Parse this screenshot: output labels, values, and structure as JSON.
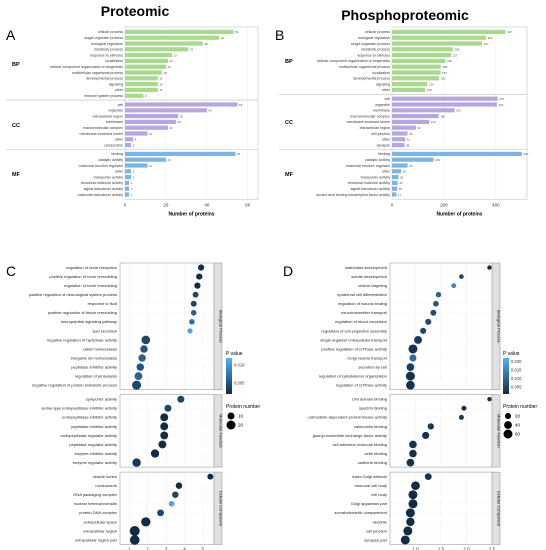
{
  "colors": {
    "bp": "#a9d98c",
    "cc": "#b8a6e0",
    "mf": "#7fb3e0",
    "strip": "#e0e0e0",
    "dot": "#0f1f3a",
    "grad_low": "#56b1f7",
    "grad_high": "#132b43"
  },
  "panel_letters": [
    "A",
    "B",
    "C",
    "D"
  ],
  "headings": [
    "Proteomic",
    "Phosphoproteomic"
  ],
  "chart_data": [
    {
      "type": "bar",
      "panel": "A",
      "title": "Proteomic",
      "xlabel": "Number of proteins",
      "xlim": [
        0,
        65
      ],
      "xticks": [
        "0",
        "20",
        "40",
        "60"
      ],
      "grid": true,
      "groups": [
        {
          "name": "BP",
          "labels": [
            "cellular process",
            "single-organism process",
            "biological regulation",
            "metabolic process",
            "response to stimulus",
            "localization",
            "cellular component organization or biogenesis",
            "multicellular organismal process",
            "developmental process",
            "signaling",
            "other",
            "immune system process"
          ],
          "values": [
            53,
            46,
            38,
            31,
            23,
            21,
            20,
            18,
            16,
            16,
            16,
            9
          ]
        },
        {
          "name": "CC",
          "labels": [
            "cell",
            "organelle",
            "extracellular region",
            "membrane",
            "macromolecular complex",
            "membrane-enclosed lumen",
            "other",
            "cell junction"
          ],
          "values": [
            55,
            40,
            26,
            25,
            21,
            11,
            4,
            3
          ]
        },
        {
          "name": "MF",
          "labels": [
            "binding",
            "catalytic activity",
            "molecular function regulator",
            "other",
            "transporter activity",
            "structural molecule activity",
            "signal transducer activity",
            "molecular transducer activity"
          ],
          "values": [
            54,
            20,
            11,
            3,
            3,
            2,
            2,
            2
          ]
        }
      ]
    },
    {
      "type": "bar",
      "panel": "B",
      "title": "Phosphoproteomic",
      "xlabel": "Number of proteins",
      "xlim": [
        0,
        520
      ],
      "xticks": [
        "0",
        "200",
        "400"
      ],
      "grid": true,
      "groups": [
        {
          "name": "BP",
          "labels": [
            "cellular process",
            "biological regulation",
            "single-organism process",
            "metabolic process",
            "response to stimulus",
            "cellular component organization or biogenesis",
            "multicellular organismal process",
            "localization",
            "developmental process",
            "signaling",
            "other"
          ],
          "values": [
            437,
            362,
            347,
            234,
            227,
            206,
            188,
            187,
            182,
            136,
            128
          ]
        },
        {
          "name": "CC",
          "labels": [
            "cell",
            "organelle",
            "membrane",
            "macromolecular complex",
            "membrane-enclosed lumen",
            "extracellular region",
            "cell junction",
            "other",
            "synapse"
          ],
          "values": [
            407,
            404,
            241,
            180,
            144,
            92,
            60,
            51,
            48
          ]
        },
        {
          "name": "MF",
          "labels": [
            "binding",
            "catalytic activity",
            "molecular function regulator",
            "other",
            "transporter activity",
            "structural molecule activity",
            "signal transducer activity",
            "nucleic acid binding transcription factor activity"
          ],
          "values": [
            500,
            160,
            60,
            35,
            25,
            22,
            20,
            17
          ]
        }
      ]
    },
    {
      "type": "scatter",
      "panel": "C",
      "xlabel": "Log2 Fold enrichment",
      "xlim": [
        0.5,
        5.6
      ],
      "xticks": [
        "1",
        "2",
        "3",
        "4",
        "5"
      ],
      "legend": {
        "pvalue_title": "P value",
        "pvalue_ticks": [
          "0.010",
          "0.005"
        ],
        "pvalue_range": [
          0.002,
          0.012
        ],
        "size_title": "Protein number",
        "size_ticks": [
          "10",
          "20"
        ],
        "size_values": [
          10,
          20
        ]
      },
      "groups": [
        {
          "name": "Biological Process",
          "terms": [
            "regulation of bone resorption",
            "positive regulation of bone remodeling",
            "regulation of bone remodeling",
            "positive regulation of neurological system process",
            "response to fluid",
            "positive regulation of tissue remodeling",
            "neuropeptide signaling pathway",
            "acid secretion",
            "negative regulation of hydrolase activity",
            "cation homeostasis",
            "inorganic ion homeostasis",
            "peptidase inhibitor activity",
            "regulation of proteolysis",
            "negative regulation of protein metabolic process"
          ],
          "x": [
            4.9,
            4.8,
            4.7,
            4.6,
            4.5,
            4.5,
            4.4,
            4.3,
            1.9,
            1.8,
            1.7,
            1.6,
            1.5,
            1.4
          ],
          "p": [
            0.002,
            0.002,
            0.002,
            0.004,
            0.004,
            0.006,
            0.007,
            0.011,
            0.004,
            0.005,
            0.006,
            0.005,
            0.006,
            0.004
          ],
          "n": [
            7,
            7,
            7,
            6,
            6,
            5,
            5,
            4,
            18,
            12,
            12,
            12,
            14,
            20
          ]
        },
        {
          "name": "Molecular Function",
          "terms": [
            "symporter activity",
            "serine-type endopeptidase inhibitor activity",
            "endopeptidase inhibitor activity",
            "peptidase inhibitor activity",
            "endopeptidase regulator activity",
            "peptidase regulator activity",
            "enzyme inhibitor activity",
            "enzyme regulator activity"
          ],
          "x": [
            3.8,
            3.1,
            2.9,
            2.9,
            2.9,
            2.8,
            2.4,
            1.4
          ],
          "p": [
            0.004,
            0.004,
            0.002,
            0.002,
            0.002,
            0.002,
            0.002,
            0.003
          ],
          "n": [
            10,
            10,
            14,
            14,
            14,
            14,
            16,
            17
          ]
        },
        {
          "name": "Cellular Component",
          "terms": [
            "vesicle lumen",
            "nucleosome",
            "DNA packaging complex",
            "nuclear heterochromatin",
            "protein-DNA complex",
            "extracellular space",
            "extracellular region",
            "extracellular region part"
          ],
          "x": [
            5.4,
            3.7,
            3.5,
            3.3,
            2.7,
            1.9,
            1.3,
            1.3
          ],
          "p": [
            0.002,
            0.002,
            0.004,
            0.011,
            0.004,
            0.002,
            0.002,
            0.002
          ],
          "n": [
            6,
            8,
            8,
            5,
            9,
            22,
            26,
            24
          ]
        }
      ]
    },
    {
      "type": "scatter",
      "panel": "D",
      "xlabel": "Log2 Fold enrichment",
      "xlim": [
        0.5,
        2.5
      ],
      "xticks": [
        "1.0",
        "1.5",
        "2.0",
        "2.5"
      ],
      "legend": {
        "pvalue_title": "P value",
        "pvalue_ticks": [
          "0.020",
          "0.015",
          "0.010",
          "0.005"
        ],
        "pvalue_range": [
          0.001,
          0.022
        ],
        "size_title": "Protein number",
        "size_ticks": [
          "20",
          "40",
          "60"
        ],
        "size_values": [
          20,
          40,
          60
        ]
      },
      "groups": [
        {
          "name": "Biological Process",
          "terms": [
            "osteoblast development",
            "somite development",
            "vesicle targeting",
            "epidermal cell differentiation",
            "regulation of wound healing",
            "neurotransmitter transport",
            "regulation of blood circulation",
            "regulation of cell projection assembly",
            "single-organism intracellular transport",
            "positive regulation of GTPase activity",
            "Golgi vesicle transport",
            "secretion by cell",
            "regulation of cytoskeleton organization",
            "regulation of GTPase activity"
          ],
          "x": [
            2.45,
            1.9,
            1.75,
            1.45,
            1.4,
            1.35,
            1.25,
            1.15,
            1.05,
            0.95,
            0.95,
            0.9,
            0.9,
            0.9
          ],
          "p": [
            0.001,
            0.005,
            0.015,
            0.01,
            0.008,
            0.006,
            0.006,
            0.005,
            0.003,
            0.002,
            0.011,
            0.004,
            0.002,
            0.002
          ],
          "n": [
            6,
            8,
            9,
            14,
            16,
            18,
            20,
            20,
            42,
            60,
            30,
            40,
            60,
            55
          ]
        },
        {
          "name": "Molecular Function",
          "terms": [
            "LIM domain binding",
            "spectrin binding",
            "calmodulin-dependent protein kinase activity",
            "calmodulin binding",
            "guanyl-nucleotide exchange factor activity",
            "cell adhesion molecule binding",
            "actin binding",
            "cadherin binding"
          ],
          "x": [
            2.45,
            1.95,
            1.9,
            1.3,
            1.2,
            0.95,
            0.95,
            0.9
          ],
          "p": [
            0.002,
            0.002,
            0.003,
            0.003,
            0.002,
            0.002,
            0.002,
            0.002
          ],
          "n": [
            6,
            10,
            10,
            22,
            32,
            38,
            38,
            40
          ]
        },
        {
          "name": "Cellular Component",
          "terms": [
            "trans-Golgi network",
            "neuronal cell body",
            "cell body",
            "Golgi apparatus part",
            "somatodendritic compartment",
            "dendrite",
            "cell junction",
            "synapse part"
          ],
          "x": [
            1.25,
            1.0,
            0.95,
            0.95,
            0.9,
            0.9,
            0.85,
            0.8
          ],
          "p": [
            0.002,
            0.001,
            0.001,
            0.001,
            0.001,
            0.001,
            0.001,
            0.001
          ],
          "n": [
            28,
            55,
            60,
            60,
            60,
            50,
            60,
            60
          ]
        }
      ]
    }
  ]
}
